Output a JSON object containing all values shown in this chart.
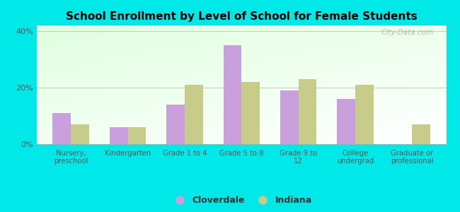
{
  "title": "School Enrollment by Level of School for Female Students",
  "categories": [
    "Nursery,\npreschool",
    "Kindergarten",
    "Grade 1 to 4",
    "Grade 5 to 8",
    "Grade 9 to\n12",
    "College\nundergrad",
    "Graduate or\nprofessional"
  ],
  "cloverdale": [
    11,
    6,
    14,
    35,
    19,
    16,
    0
  ],
  "indiana": [
    7,
    6,
    21,
    22,
    23,
    21,
    7
  ],
  "cloverdale_color": "#c9a0dc",
  "indiana_color": "#c8cc8a",
  "bg_color": "#00e8e8",
  "ylabel_ticks": [
    "0%",
    "20%",
    "40%"
  ],
  "yticks": [
    0,
    20,
    40
  ],
  "ylim": [
    0,
    42
  ],
  "bar_width": 0.32,
  "legend_cloverdale": "Cloverdale",
  "legend_indiana": "Indiana",
  "watermark": "City-Data.com"
}
